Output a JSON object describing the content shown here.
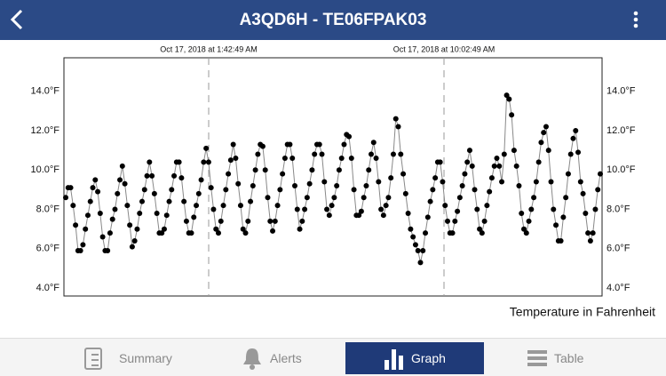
{
  "header": {
    "title": "A3QD6H - TE06FPAK03"
  },
  "chart_data": {
    "type": "line",
    "color": "#000000",
    "line_color": "#888888",
    "markers": [
      "Oct 17, 2018 at 1:42:49 AM",
      "Oct 17, 2018 at 10:02:49 AM"
    ],
    "legend": "Temperature in Fahrenheit",
    "ylim": [
      3.6,
      15.7
    ],
    "yticks": [
      {
        "value": 4,
        "label": "4.0°F"
      },
      {
        "value": 6,
        "label": "6.0°F"
      },
      {
        "value": 8,
        "label": "8.0°F"
      },
      {
        "value": 10,
        "label": "10.0°F"
      },
      {
        "value": 12,
        "label": "12.0°F"
      },
      {
        "value": 14,
        "label": "14.0°F"
      }
    ],
    "values": [
      8.6,
      9.1,
      9.1,
      8.2,
      7.2,
      5.9,
      5.9,
      6.2,
      7.0,
      7.7,
      8.4,
      9.1,
      9.5,
      8.9,
      7.8,
      6.6,
      5.9,
      5.9,
      6.8,
      7.5,
      8.0,
      8.8,
      9.5,
      10.2,
      9.3,
      8.2,
      7.2,
      6.1,
      6.4,
      7.0,
      7.8,
      8.4,
      9.0,
      9.7,
      10.4,
      9.7,
      8.8,
      7.8,
      6.8,
      6.8,
      7.0,
      7.7,
      8.4,
      9.0,
      9.7,
      10.4,
      10.4,
      9.6,
      8.4,
      7.4,
      6.8,
      6.8,
      7.6,
      8.2,
      8.8,
      9.5,
      10.4,
      11.1,
      10.4,
      9.1,
      8.0,
      7.0,
      6.8,
      7.4,
      8.2,
      9.0,
      9.8,
      10.5,
      11.3,
      10.6,
      9.3,
      8.2,
      7.0,
      6.8,
      7.4,
      8.4,
      9.2,
      10.0,
      10.8,
      11.3,
      11.2,
      10.0,
      8.6,
      7.4,
      6.9,
      7.4,
      8.2,
      9.0,
      9.8,
      10.6,
      11.3,
      11.3,
      10.6,
      9.2,
      8.0,
      7.0,
      7.4,
      8.0,
      8.6,
      9.3,
      10.0,
      10.8,
      11.3,
      11.3,
      10.8,
      9.4,
      8.0,
      7.7,
      8.2,
      8.6,
      9.2,
      10.0,
      10.6,
      11.3,
      11.8,
      11.7,
      10.6,
      9.0,
      7.7,
      7.7,
      7.9,
      8.6,
      9.2,
      10.0,
      10.8,
      11.4,
      10.6,
      9.4,
      8.0,
      7.7,
      8.2,
      8.6,
      9.6,
      10.8,
      12.6,
      12.2,
      10.8,
      9.8,
      8.8,
      7.8,
      7.0,
      6.6,
      6.2,
      5.9,
      5.3,
      5.9,
      6.8,
      7.6,
      8.4,
      9.0,
      9.6,
      10.4,
      10.4,
      9.4,
      8.2,
      7.4,
      6.8,
      6.8,
      7.4,
      7.9,
      8.6,
      9.2,
      9.8,
      10.4,
      11.0,
      10.2,
      9.0,
      8.0,
      7.0,
      6.8,
      7.4,
      8.2,
      8.9,
      9.6,
      10.2,
      10.6,
      10.2,
      9.4,
      10.8,
      13.8,
      13.6,
      12.8,
      11.0,
      10.2,
      9.2,
      7.8,
      7.0,
      6.8,
      7.4,
      8.0,
      8.6,
      9.4,
      10.4,
      11.4,
      11.9,
      12.2,
      11.0,
      9.4,
      8.0,
      7.2,
      6.4,
      6.4,
      7.6,
      8.6,
      9.8,
      10.8,
      11.6,
      12.0,
      10.9,
      9.4,
      8.8,
      7.8,
      6.8,
      6.4,
      6.8,
      8.0,
      9.0,
      9.8
    ]
  },
  "tabs": [
    {
      "label": "Summary"
    },
    {
      "label": "Alerts"
    },
    {
      "label": "Graph"
    },
    {
      "label": "Table"
    }
  ]
}
